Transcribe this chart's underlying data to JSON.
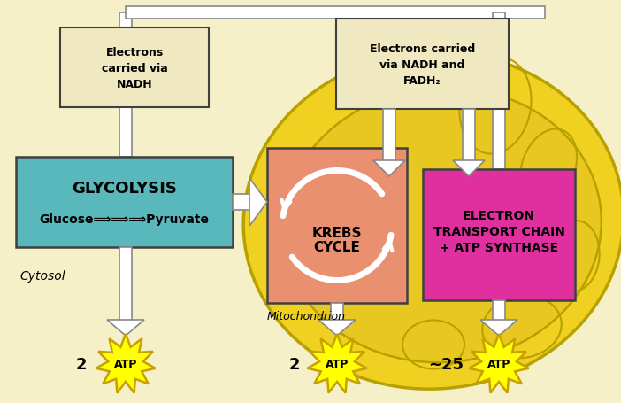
{
  "bg_color": "#f5f0c8",
  "mito_outer_color": "#f0d020",
  "mito_inner_color": "#e8c820",
  "mito_edge_color": "#b8a000",
  "krebs_box_color": "#e89070",
  "glycolysis_box_color": "#58b8bc",
  "etc_box_color": "#e030a0",
  "electron_box_color": "#f0e8c0",
  "atp_star_color": "#ffff00",
  "atp_edge_color": "#c8a000",
  "arrow_fill": "#ffffff",
  "arrow_edge": "#888888",
  "box_edge": "#404040",
  "glycolysis_title": "GLYCOLYSIS",
  "glycolysis_subtitle": "Glucose⟹⟹⟹Pyruvate",
  "krebs_title": "KREBS\nCYCLE",
  "etc_line1": "ELECTRON",
  "etc_line2": "TRANSPORT CHAIN",
  "etc_line3": "+ ATP SYNTHASE",
  "electrons_left_line1": "Electrons",
  "electrons_left_line2": "carried via",
  "electrons_left_line3": "NADH",
  "electrons_right_line1": "Electrons carried",
  "electrons_right_line2": "via NADH and",
  "electrons_right_line3": "FADH₂",
  "cytosol_text": "Cytosol",
  "mito_text": "Mitochondrion",
  "atp_text": "ATP",
  "atp1_num": "2",
  "atp2_num": "2",
  "atp3_num": "~25",
  "figw": 7.02,
  "figh": 4.56,
  "dpi": 100
}
